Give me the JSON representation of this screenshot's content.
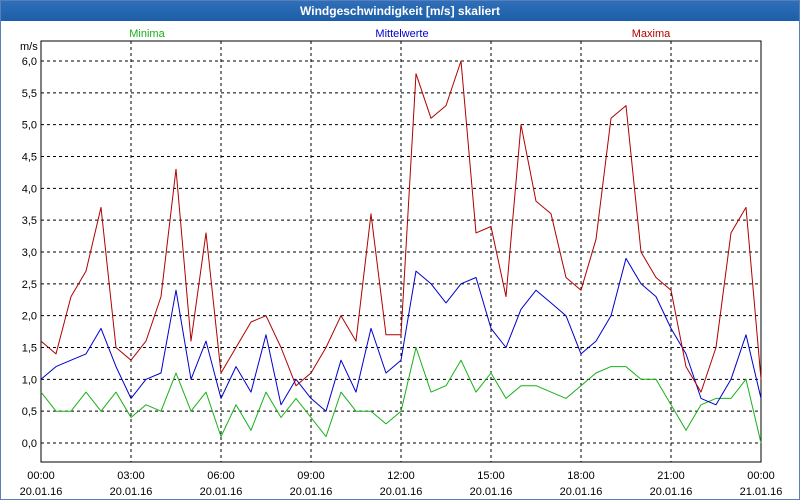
{
  "window": {
    "title": "Windgeschwindigkeit [m/s] skaliert"
  },
  "colors": {
    "minima": "#18b018",
    "mittelwerte": "#0000cc",
    "maxima": "#b00000",
    "titlebar": "#1d5ea8"
  },
  "chart_data": {
    "type": "line",
    "title": "Windgeschwindigkeit [m/s] skaliert",
    "ylabel": "m/s",
    "xlabel": "",
    "ylim": [
      0,
      6
    ],
    "yticks": [
      "0,0",
      "0,5",
      "1,0",
      "1,5",
      "2,0",
      "2,5",
      "3,0",
      "3,5",
      "4,0",
      "4,5",
      "5,0",
      "5,5",
      "6,0"
    ],
    "xlim": [
      "20.01.16 00:00",
      "21.01.16 00:00"
    ],
    "xticks": [
      {
        "time": "00:00",
        "date": "20.01.16"
      },
      {
        "time": "03:00",
        "date": "20.01.16"
      },
      {
        "time": "06:00",
        "date": "20.01.16"
      },
      {
        "time": "09:00",
        "date": "20.01.16"
      },
      {
        "time": "12:00",
        "date": "20.01.16"
      },
      {
        "time": "15:00",
        "date": "20.01.16"
      },
      {
        "time": "18:00",
        "date": "20.01.16"
      },
      {
        "time": "21:00",
        "date": "20.01.16"
      },
      {
        "time": "00:00",
        "date": "21.01.16"
      }
    ],
    "grid": true,
    "legend_position": "top",
    "x_hours": [
      0,
      0.5,
      1,
      1.5,
      2,
      2.5,
      3,
      3.5,
      4,
      4.5,
      5,
      5.5,
      6,
      6.5,
      7,
      7.5,
      8,
      8.5,
      9,
      9.5,
      10,
      10.5,
      11,
      11.5,
      12,
      12.5,
      13,
      13.5,
      14,
      14.5,
      15,
      15.5,
      16,
      16.5,
      17,
      17.5,
      18,
      18.5,
      19,
      19.5,
      20,
      20.5,
      21,
      21.5,
      22,
      22.5,
      23,
      23.5,
      24
    ],
    "series": [
      {
        "name": "Minima",
        "values": [
          0.8,
          0.5,
          0.5,
          0.8,
          0.5,
          0.8,
          0.4,
          0.6,
          0.5,
          1.1,
          0.5,
          0.8,
          0.1,
          0.6,
          0.2,
          0.8,
          0.4,
          0.7,
          0.4,
          0.1,
          0.8,
          0.5,
          0.5,
          0.3,
          0.5,
          1.5,
          0.8,
          0.9,
          1.3,
          0.8,
          1.1,
          0.7,
          0.9,
          0.9,
          0.8,
          0.7,
          0.9,
          1.1,
          1.2,
          1.2,
          1.0,
          1.0,
          0.6,
          0.2,
          0.6,
          0.7,
          0.7,
          1.0,
          0.0
        ]
      },
      {
        "name": "Mittelwerte",
        "values": [
          1.0,
          1.2,
          1.3,
          1.4,
          1.8,
          1.2,
          0.7,
          1.0,
          1.1,
          2.4,
          1.0,
          1.6,
          0.7,
          1.2,
          0.8,
          1.7,
          0.6,
          1.0,
          0.7,
          0.5,
          1.3,
          0.8,
          1.8,
          1.1,
          1.3,
          2.7,
          2.5,
          2.2,
          2.5,
          2.6,
          1.8,
          1.5,
          2.1,
          2.4,
          2.2,
          2.0,
          1.4,
          1.6,
          2.0,
          2.9,
          2.5,
          2.3,
          1.8,
          1.4,
          0.7,
          0.6,
          1.0,
          1.7,
          0.7
        ]
      },
      {
        "name": "Maxima",
        "values": [
          1.6,
          1.4,
          2.3,
          2.7,
          3.7,
          1.5,
          1.3,
          1.6,
          2.3,
          4.3,
          1.6,
          3.3,
          1.1,
          1.5,
          1.9,
          2.0,
          1.5,
          0.9,
          1.1,
          1.5,
          2.0,
          1.6,
          3.6,
          1.7,
          1.7,
          5.8,
          5.1,
          5.3,
          6.0,
          3.3,
          3.4,
          2.3,
          5.0,
          3.8,
          3.6,
          2.6,
          2.4,
          3.2,
          5.1,
          5.3,
          3.0,
          2.6,
          2.4,
          1.2,
          0.8,
          1.5,
          3.3,
          3.7,
          1.0
        ]
      }
    ]
  }
}
